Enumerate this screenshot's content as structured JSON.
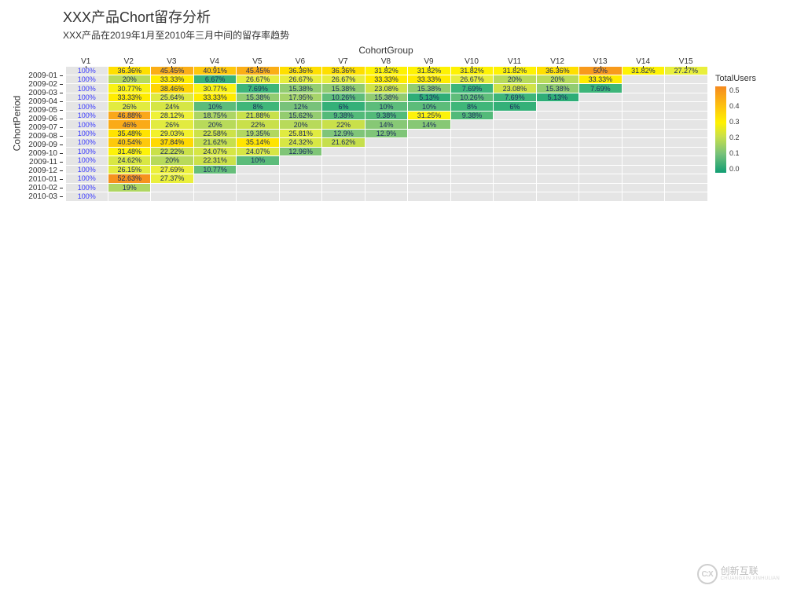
{
  "chart": {
    "type": "heatmap",
    "title": "XXX产品Chort留存分析",
    "subtitle": "XXX产品在2019年1月至2010年三月中间的留存率趋势",
    "x_axis_title": "CohortGroup",
    "y_axis_title": "CohortPeriod",
    "x_labels": [
      "V1",
      "V2",
      "V3",
      "V4",
      "V5",
      "V6",
      "V7",
      "V8",
      "V9",
      "V10",
      "V11",
      "V12",
      "V13",
      "V14",
      "V15"
    ],
    "y_labels": [
      "2009-01",
      "2009-02",
      "2009-03",
      "2009-04",
      "2009-05",
      "2009-06",
      "2009-07",
      "2009-08",
      "2009-09",
      "2009-10",
      "2009-11",
      "2009-12",
      "2010-01",
      "2010-02",
      "2010-03"
    ],
    "first_col_text": "100%",
    "first_col_text_color": "#3b3bff",
    "cell_text_color": "#1a2a5e",
    "cell_fontsize": 9,
    "empty_color": "#e5e5e5",
    "background_color": "#ffffff",
    "color_scale": {
      "min": 0.0,
      "max": 0.55,
      "stops": [
        {
          "at": 0.0,
          "color": "#119e73"
        },
        {
          "at": 0.08,
          "color": "#3fb679"
        },
        {
          "at": 0.12,
          "color": "#78c27a"
        },
        {
          "at": 0.18,
          "color": "#a6d36a"
        },
        {
          "at": 0.22,
          "color": "#c9e04a"
        },
        {
          "at": 0.28,
          "color": "#eef13a"
        },
        {
          "at": 0.32,
          "color": "#fff200"
        },
        {
          "at": 0.38,
          "color": "#ffd800"
        },
        {
          "at": 0.42,
          "color": "#fdc010"
        },
        {
          "at": 0.48,
          "color": "#f9a11b"
        },
        {
          "at": 0.55,
          "color": "#f58a1f"
        }
      ]
    },
    "rows": [
      {
        "period": "2009-01",
        "values": [
          0.3636,
          0.4545,
          0.4091,
          0.4545,
          0.3636,
          0.3636,
          0.3182,
          0.3182,
          0.3182,
          0.3182,
          0.3636,
          0.5,
          0.3182,
          0.2727
        ],
        "labels": [
          "36.36%",
          "45.45%",
          "40.91%",
          "45.45%",
          "36.36%",
          "36.36%",
          "31.82%",
          "31.82%",
          "31.82%",
          "31.82%",
          "36.36%",
          "50%",
          "31.82%",
          "27.27%"
        ]
      },
      {
        "period": "2009-02",
        "values": [
          0.2,
          0.3333,
          0.0667,
          0.2667,
          0.2667,
          0.2667,
          0.3333,
          0.3333,
          0.2667,
          0.2,
          0.2,
          0.3333,
          null,
          null
        ],
        "labels": [
          "20%",
          "33.33%",
          "6.67%",
          "26.67%",
          "26.67%",
          "26.67%",
          "33.33%",
          "33.33%",
          "26.67%",
          "20%",
          "20%",
          "33.33%",
          "",
          ""
        ]
      },
      {
        "period": "2009-03",
        "values": [
          0.3077,
          0.3846,
          0.3077,
          0.0769,
          0.1538,
          0.1538,
          0.2308,
          0.1538,
          0.0769,
          0.2308,
          0.1538,
          0.0769,
          null,
          null
        ],
        "labels": [
          "30.77%",
          "38.46%",
          "30.77%",
          "7.69%",
          "15.38%",
          "15.38%",
          "23.08%",
          "15.38%",
          "7.69%",
          "23.08%",
          "15.38%",
          "7.69%",
          "",
          ""
        ]
      },
      {
        "period": "2009-04",
        "values": [
          0.3333,
          0.2564,
          0.3333,
          0.1538,
          0.1795,
          0.1026,
          0.1538,
          0.0513,
          0.1026,
          0.0769,
          0.0513,
          null,
          null,
          null
        ],
        "labels": [
          "33.33%",
          "25.64%",
          "33.33%",
          "15.38%",
          "17.95%",
          "10.26%",
          "15.38%",
          "5.13%",
          "10.26%",
          "7.69%",
          "5.13%",
          "",
          "",
          ""
        ]
      },
      {
        "period": "2009-05",
        "values": [
          0.26,
          0.24,
          0.1,
          0.08,
          0.12,
          0.06,
          0.1,
          0.1,
          0.08,
          0.06,
          null,
          null,
          null,
          null
        ],
        "labels": [
          "26%",
          "24%",
          "10%",
          "8%",
          "12%",
          "6%",
          "10%",
          "10%",
          "8%",
          "6%",
          "",
          "",
          "",
          ""
        ]
      },
      {
        "period": "2009-06",
        "values": [
          0.4688,
          0.2812,
          0.1875,
          0.2188,
          0.1562,
          0.0938,
          0.0938,
          0.3125,
          0.0938,
          null,
          null,
          null,
          null,
          null
        ],
        "labels": [
          "46.88%",
          "28.12%",
          "18.75%",
          "21.88%",
          "15.62%",
          "9.38%",
          "9.38%",
          "31.25%",
          "9.38%",
          "",
          "",
          "",
          "",
          ""
        ]
      },
      {
        "period": "2009-07",
        "values": [
          0.46,
          0.26,
          0.2,
          0.22,
          0.2,
          0.22,
          0.14,
          0.14,
          null,
          null,
          null,
          null,
          null,
          null
        ],
        "labels": [
          "46%",
          "26%",
          "20%",
          "22%",
          "20%",
          "22%",
          "14%",
          "14%",
          "",
          "",
          "",
          "",
          "",
          ""
        ]
      },
      {
        "period": "2009-08",
        "values": [
          0.3548,
          0.2903,
          0.2258,
          0.1935,
          0.2581,
          0.129,
          0.129,
          null,
          null,
          null,
          null,
          null,
          null,
          null
        ],
        "labels": [
          "35.48%",
          "29.03%",
          "22.58%",
          "19.35%",
          "25.81%",
          "12.9%",
          "12.9%",
          "",
          "",
          "",
          "",
          "",
          "",
          ""
        ]
      },
      {
        "period": "2009-09",
        "values": [
          0.4054,
          0.3784,
          0.2162,
          0.3514,
          0.2432,
          0.2162,
          null,
          null,
          null,
          null,
          null,
          null,
          null,
          null
        ],
        "labels": [
          "40.54%",
          "37.84%",
          "21.62%",
          "35.14%",
          "24.32%",
          "21.62%",
          "",
          "",
          "",
          "",
          "",
          "",
          "",
          ""
        ]
      },
      {
        "period": "2009-10",
        "values": [
          0.3148,
          0.2222,
          0.2407,
          0.2407,
          0.1296,
          null,
          null,
          null,
          null,
          null,
          null,
          null,
          null,
          null
        ],
        "labels": [
          "31.48%",
          "22.22%",
          "24.07%",
          "24.07%",
          "12.96%",
          "",
          "",
          "",
          "",
          "",
          "",
          "",
          "",
          ""
        ]
      },
      {
        "period": "2009-11",
        "values": [
          0.2462,
          0.2,
          0.2231,
          0.1,
          null,
          null,
          null,
          null,
          null,
          null,
          null,
          null,
          null,
          null
        ],
        "labels": [
          "24.62%",
          "20%",
          "22.31%",
          "10%",
          "",
          "",
          "",
          "",
          "",
          "",
          "",
          "",
          "",
          ""
        ]
      },
      {
        "period": "2009-12",
        "values": [
          0.2615,
          0.2769,
          0.1077,
          null,
          null,
          null,
          null,
          null,
          null,
          null,
          null,
          null,
          null,
          null
        ],
        "labels": [
          "26.15%",
          "27.69%",
          "10.77%",
          "",
          "",
          "",
          "",
          "",
          "",
          "",
          "",
          "",
          "",
          ""
        ]
      },
      {
        "period": "2010-01",
        "values": [
          0.5263,
          0.2737,
          null,
          null,
          null,
          null,
          null,
          null,
          null,
          null,
          null,
          null,
          null,
          null
        ],
        "labels": [
          "52.63%",
          "27.37%",
          "",
          "",
          "",
          "",
          "",
          "",
          "",
          "",
          "",
          "",
          "",
          ""
        ]
      },
      {
        "period": "2010-02",
        "values": [
          0.19,
          null,
          null,
          null,
          null,
          null,
          null,
          null,
          null,
          null,
          null,
          null,
          null,
          null
        ],
        "labels": [
          "19%",
          "",
          "",
          "",
          "",
          "",
          "",
          "",
          "",
          "",
          "",
          "",
          "",
          ""
        ]
      },
      {
        "period": "2010-03",
        "values": [
          null,
          null,
          null,
          null,
          null,
          null,
          null,
          null,
          null,
          null,
          null,
          null,
          null,
          null
        ],
        "labels": [
          "",
          "",
          "",
          "",
          "",
          "",
          "",
          "",
          "",
          "",
          "",
          "",
          "",
          ""
        ]
      }
    ],
    "legend": {
      "title": "TotalUsers",
      "ticks": [
        "0.5",
        "0.4",
        "0.3",
        "0.2",
        "0.1",
        "0.0"
      ],
      "bar_gradient_top": "#f58a1f",
      "bar_gradient_bottom": "#119e73"
    }
  },
  "watermark": {
    "brand_zh": "创新互联",
    "brand_en": "CHUANGXIN XINHULIAN",
    "icon_text": "C:X"
  }
}
